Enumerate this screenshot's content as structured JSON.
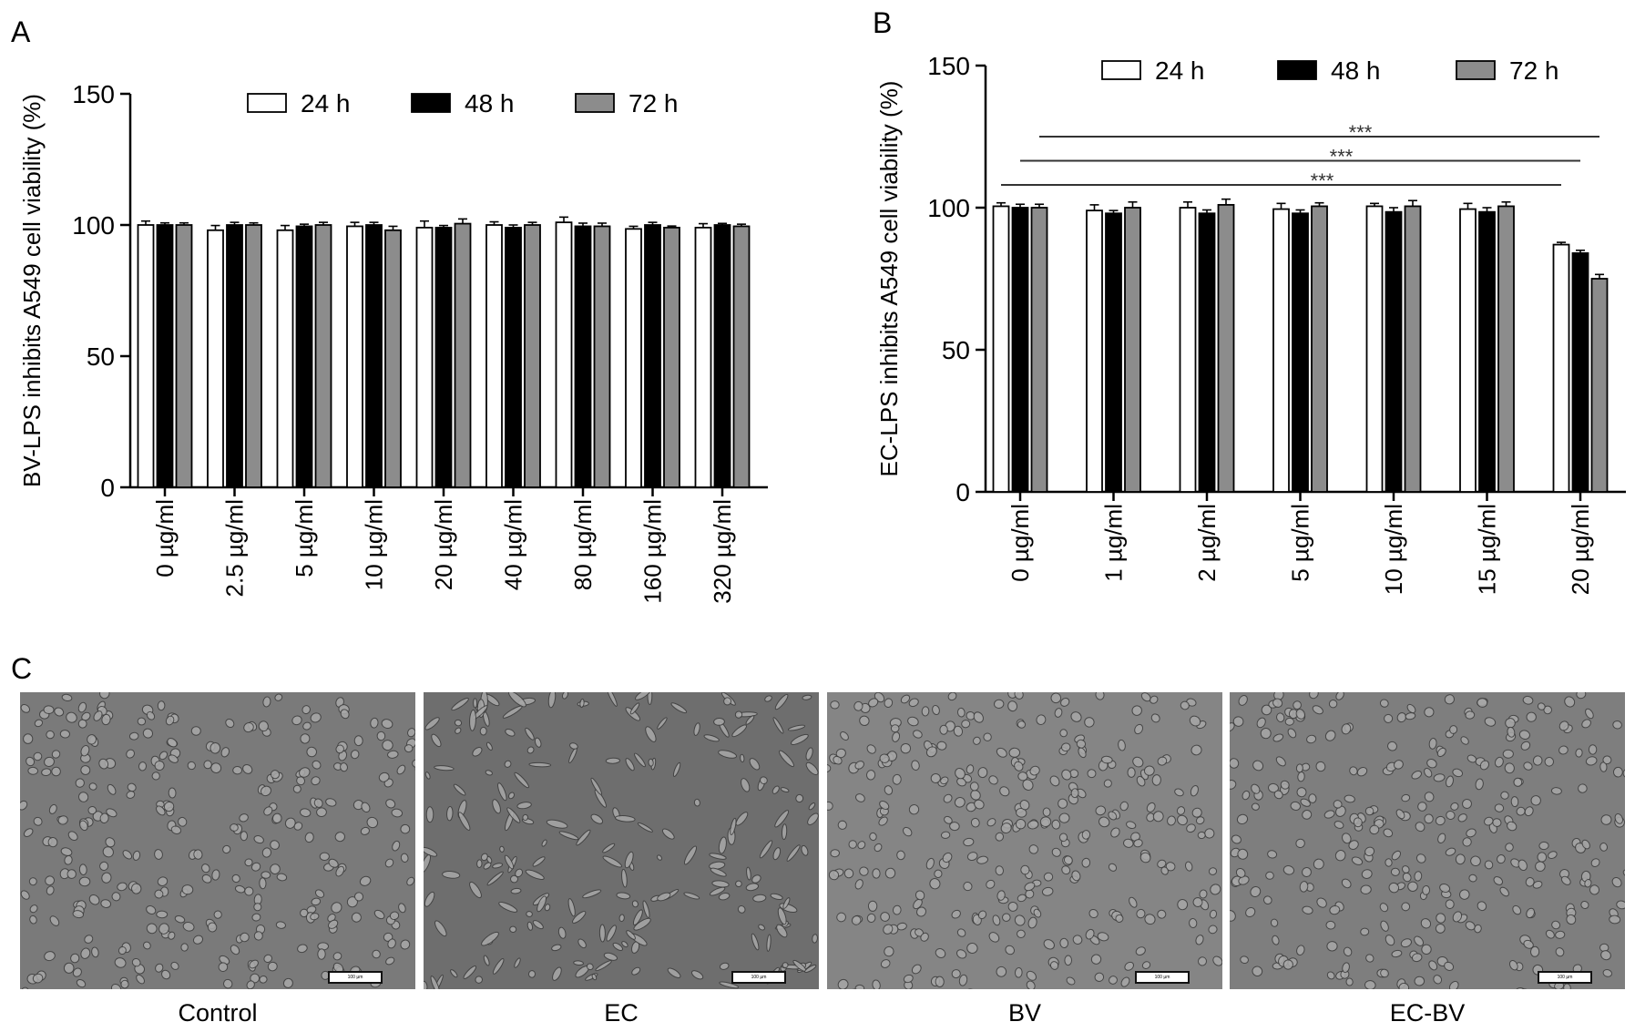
{
  "panels": {
    "A": "A",
    "B": "B",
    "C": "C"
  },
  "chart_data": [
    {
      "type": "bar",
      "panel": "A",
      "ylabel": "BV-LPS inhibits A549 cell viability (%)",
      "xlabel": "",
      "ylim": [
        0,
        150
      ],
      "yticks": [
        0,
        50,
        100,
        150
      ],
      "legend_position": "top",
      "categories": [
        "0 µg/ml",
        "2.5 µg/ml",
        "5 µg/ml",
        "10 µg/ml",
        "20 µg/ml",
        "40 µg/ml",
        "80 µg/ml",
        "160 µg/ml",
        "320 µg/ml"
      ],
      "series": [
        {
          "name": "24 h",
          "color": "#ffffff",
          "values": [
            100,
            98,
            98,
            99.5,
            99,
            100,
            101,
            98.5,
            99
          ],
          "errors": [
            1.5,
            1.8,
            1.8,
            1.5,
            2.5,
            1.2,
            2,
            1,
            1.5
          ]
        },
        {
          "name": "48 h",
          "color": "#000000",
          "values": [
            100,
            100,
            99.5,
            100,
            99,
            99,
            99.5,
            100,
            100
          ],
          "errors": [
            0.8,
            1,
            0.8,
            1,
            0.8,
            1,
            1.2,
            1,
            0.6
          ]
        },
        {
          "name": "72 h",
          "color": "#8c8c8c",
          "values": [
            100,
            100,
            100,
            98,
            100.5,
            100,
            99.5,
            99,
            99.5
          ],
          "errors": [
            0.8,
            0.8,
            1,
            1.5,
            1.8,
            1,
            1.2,
            0.6,
            0.8
          ]
        }
      ],
      "annotations": []
    },
    {
      "type": "bar",
      "panel": "B",
      "ylabel": "EC-LPS inhibits A549 cell viability (%)",
      "xlabel": "",
      "ylim": [
        0,
        150
      ],
      "yticks": [
        0,
        50,
        100,
        150
      ],
      "legend_position": "top",
      "categories": [
        "0 µg/ml",
        "1 µg/ml",
        "2 µg/ml",
        "5 µg/ml",
        "10 µg/ml",
        "15 µg/ml",
        "20 µg/ml"
      ],
      "series": [
        {
          "name": "24 h",
          "color": "#ffffff",
          "values": [
            100.5,
            99,
            100,
            99.5,
            100.5,
            99.5,
            87
          ],
          "errors": [
            1.2,
            2,
            2,
            2,
            1,
            2,
            0.8
          ]
        },
        {
          "name": "48 h",
          "color": "#000000",
          "values": [
            100,
            98,
            98,
            98,
            98.5,
            98.5,
            84
          ],
          "errors": [
            1.2,
            1,
            1.2,
            1.2,
            1.5,
            1.5,
            1
          ]
        },
        {
          "name": "72 h",
          "color": "#8c8c8c",
          "values": [
            100,
            100,
            101,
            100.5,
            100.5,
            100.5,
            75
          ],
          "errors": [
            1.2,
            2,
            2,
            1.2,
            2,
            1.5,
            1.5
          ]
        }
      ],
      "annotations": [
        {
          "text": "***",
          "from_category": 0,
          "from_series": 0,
          "to_category": 6,
          "to_series": 0,
          "level": 108
        },
        {
          "text": "***",
          "from_category": 0,
          "from_series": 1,
          "to_category": 6,
          "to_series": 1,
          "level": 116.5
        },
        {
          "text": "***",
          "from_category": 0,
          "from_series": 2,
          "to_category": 6,
          "to_series": 2,
          "level": 125
        }
      ]
    }
  ],
  "micrographs": [
    {
      "label": "Control",
      "scale_text": "100 µm"
    },
    {
      "label": "EC",
      "scale_text": "100 µm"
    },
    {
      "label": "BV",
      "scale_text": "100 µm"
    },
    {
      "label": "EC-BV",
      "scale_text": "100 µm"
    }
  ]
}
